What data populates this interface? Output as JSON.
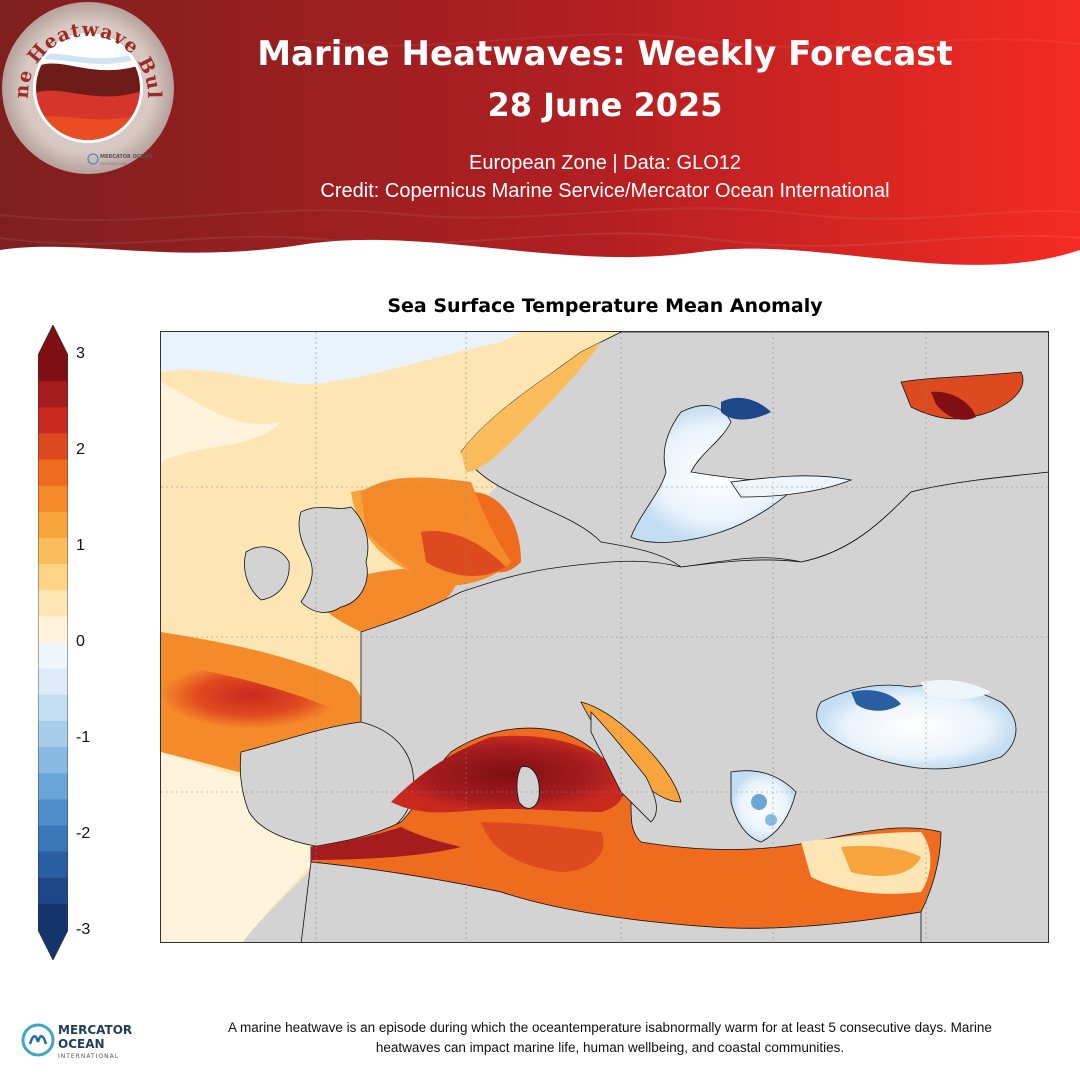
{
  "header": {
    "title_line1": "Marine Heatwaves: Weekly Forecast",
    "title_line2": "28 June 2025",
    "subtitle_line1": "European Zone | Data: GLO12",
    "subtitle_line2": "Credit: Copernicus Marine Service/Mercator Ocean International",
    "badge_text": "Marine Heatwave Bulletin",
    "badge_logo_text": "MERCATOR OCEAN",
    "badge_logo_subtext": "INTERNATIONAL"
  },
  "map": {
    "title": "Sea Surface Temperature Mean Anomaly",
    "colorbar": {
      "ticks": [
        "3",
        "2",
        "1",
        "0",
        "-1",
        "-2",
        "-3"
      ],
      "min": -3,
      "max": 3,
      "colors_warm": [
        "#7f0f12",
        "#a51c1f",
        "#c8291f",
        "#de4a1f",
        "#ef6c1f",
        "#f58a2a",
        "#f8a43d",
        "#fbbd5c",
        "#fcd486",
        "#fde6b3",
        "#fff3dc"
      ],
      "colors_cool": [
        "#eef6fc",
        "#dcebf7",
        "#c3ddf2",
        "#a7cdeb",
        "#88bae2",
        "#6aa5d8",
        "#4f8ecb",
        "#3a76b8",
        "#2a5ea3",
        "#1d4789",
        "#15336d"
      ]
    },
    "land_color": "#d3d3d3"
  },
  "footer": {
    "logo_line1": "MERCATOR",
    "logo_line2": "OCEAN",
    "logo_line3": "INTERNATIONAL",
    "text": "A marine heatwave is an episode during which the oceantemperature isabnormally warm for at least 5 consecutive days. Marine heatwaves can impact marine life, human wellbeing, and coastal communities."
  }
}
